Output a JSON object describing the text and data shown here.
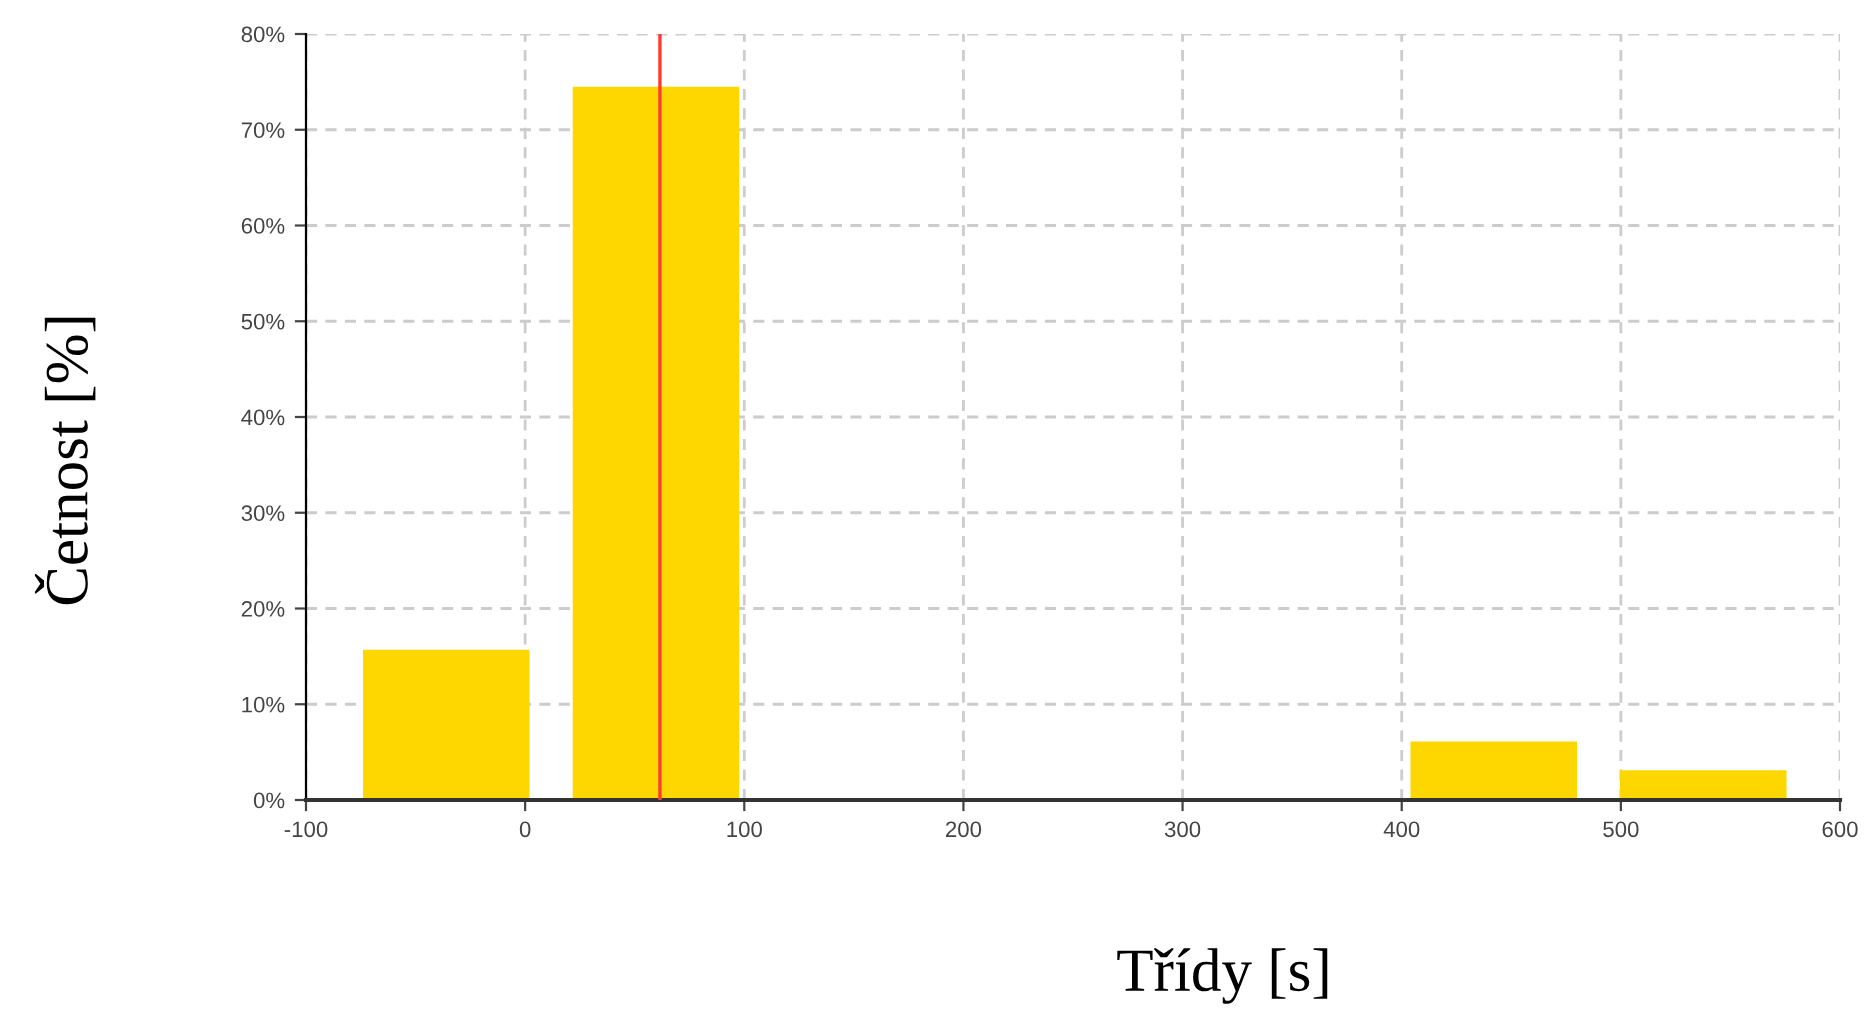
{
  "chart_data": {
    "type": "bar",
    "xlabel": "Třídy [s]",
    "ylabel": "Četnost [%]",
    "x": [
      -36,
      59.7,
      442,
      537.6
    ],
    "series": [
      {
        "color": "#ffd700",
        "values": [
          15.7,
          74.5,
          6.1,
          3.1
        ]
      }
    ],
    "xlim": [
      -100,
      600
    ],
    "xticks": [
      -100,
      0,
      100,
      200,
      300,
      400,
      500,
      600
    ],
    "ylim": [
      0,
      80
    ],
    "yticks": [
      {
        "value": 0,
        "label": "0%"
      },
      {
        "value": 10,
        "label": "10%"
      },
      {
        "value": 20,
        "label": "20%"
      },
      {
        "value": 30,
        "label": "30%"
      },
      {
        "value": 40,
        "label": "40%"
      },
      {
        "value": 50,
        "label": "50%"
      },
      {
        "value": 60,
        "label": "60%"
      },
      {
        "value": 70,
        "label": "70%"
      },
      {
        "value": 80,
        "label": "80%"
      }
    ],
    "ref_lines": [
      {
        "axis": "x",
        "value": 61.5,
        "color": "#ff3b30"
      }
    ],
    "grid": true
  }
}
